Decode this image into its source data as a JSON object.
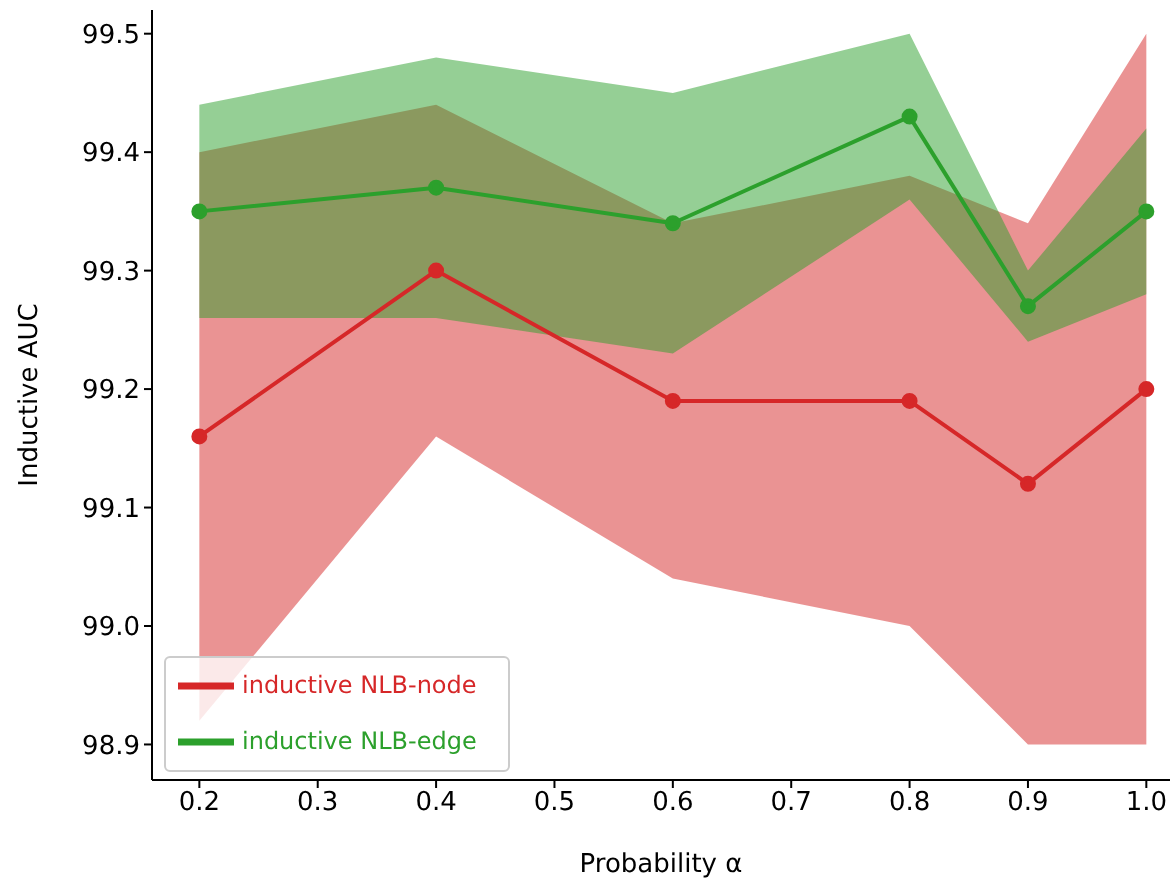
{
  "chart_data": {
    "type": "line",
    "xlabel": "Probability α",
    "ylabel": "Inductive AUC",
    "x": [
      0.2,
      0.4,
      0.6,
      0.8,
      0.9,
      1.0
    ],
    "xlim": [
      0.16,
      1.02
    ],
    "xticks": [
      {
        "value": 0.2,
        "label": "0.2"
      },
      {
        "value": 0.3,
        "label": "0.3"
      },
      {
        "value": 0.4,
        "label": "0.4"
      },
      {
        "value": 0.5,
        "label": "0.5"
      },
      {
        "value": 0.6,
        "label": "0.6"
      },
      {
        "value": 0.7,
        "label": "0.7"
      },
      {
        "value": 0.8,
        "label": "0.8"
      },
      {
        "value": 0.9,
        "label": "0.9"
      },
      {
        "value": 1.0,
        "label": "1.0"
      }
    ],
    "ylim": [
      98.87,
      99.52
    ],
    "yticks": [
      {
        "value": 98.9,
        "label": "98.9"
      },
      {
        "value": 99.0,
        "label": "99.0"
      },
      {
        "value": 99.1,
        "label": "99.1"
      },
      {
        "value": 99.2,
        "label": "99.2"
      },
      {
        "value": 99.3,
        "label": "99.3"
      },
      {
        "value": 99.4,
        "label": "99.4"
      },
      {
        "value": 99.5,
        "label": "99.5"
      }
    ],
    "series": [
      {
        "name": "inductive NLB-node",
        "color": "#d62728",
        "values": [
          99.16,
          99.3,
          99.19,
          99.19,
          99.12,
          99.2
        ],
        "lower": [
          98.92,
          99.16,
          99.04,
          99.0,
          98.9,
          98.9
        ],
        "upper": [
          99.4,
          99.44,
          99.34,
          99.38,
          99.34,
          99.5
        ]
      },
      {
        "name": "inductive NLB-edge",
        "color": "#2ca02c",
        "values": [
          99.35,
          99.37,
          99.34,
          99.43,
          99.27,
          99.35
        ],
        "lower": [
          99.26,
          99.26,
          99.23,
          99.36,
          99.24,
          99.28
        ],
        "upper": [
          99.44,
          99.48,
          99.45,
          99.5,
          99.3,
          99.42
        ]
      }
    ],
    "marker": "circle",
    "line_style": "solid",
    "grid": false,
    "legend": "bottom left"
  }
}
